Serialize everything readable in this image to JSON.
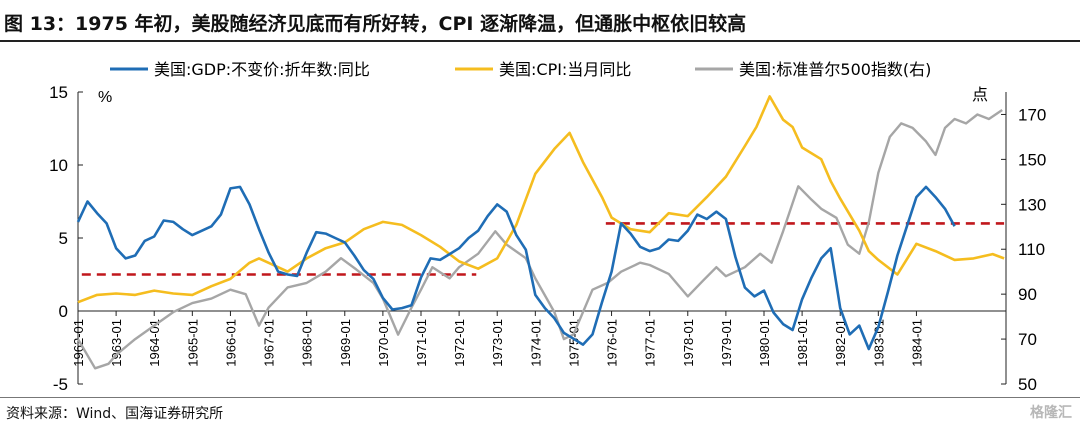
{
  "title": "图 13：1975 年初，美股随经济见底而有所好转，CPI 逐渐降温，但通胀中枢依旧较高",
  "source": "资料来源：Wind、国海证券研究所",
  "watermark": "格隆汇",
  "chart_data": {
    "type": "line",
    "left_unit": "%",
    "right_unit": "点",
    "left_axis": {
      "min": -5,
      "max": 15,
      "ticks": [
        -5,
        0,
        5,
        10,
        15
      ]
    },
    "right_axis": {
      "min": 50,
      "max": 180,
      "ticks": [
        50,
        70,
        90,
        110,
        130,
        150,
        170
      ]
    },
    "x_range": [
      1962.0,
      1986.35
    ],
    "x_ticks": [
      "1962-01",
      "1963-01",
      "1964-01",
      "1965-01",
      "1966-01",
      "1967-01",
      "1968-01",
      "1969-01",
      "1970-01",
      "1971-01",
      "1972-01",
      "1973-01",
      "1974-01",
      "1975-01",
      "1976-01",
      "1977-01",
      "1978-01",
      "1979-01",
      "1980-01",
      "1981-01",
      "1982-01",
      "1983-01",
      "1984-01"
    ],
    "legend_position": "top",
    "series": [
      {
        "name": "美国:GDP:不变价:折年数:同比",
        "axis": "left",
        "color": "#1f6db5",
        "points": [
          [
            1962.0,
            6.1
          ],
          [
            1962.25,
            7.5
          ],
          [
            1962.5,
            6.7
          ],
          [
            1962.75,
            6.0
          ],
          [
            1963.0,
            4.3
          ],
          [
            1963.25,
            3.6
          ],
          [
            1963.5,
            3.8
          ],
          [
            1963.75,
            4.8
          ],
          [
            1964.0,
            5.1
          ],
          [
            1964.25,
            6.2
          ],
          [
            1964.5,
            6.1
          ],
          [
            1964.75,
            5.6
          ],
          [
            1965.0,
            5.2
          ],
          [
            1965.25,
            5.5
          ],
          [
            1965.5,
            5.8
          ],
          [
            1965.75,
            6.6
          ],
          [
            1966.0,
            8.4
          ],
          [
            1966.25,
            8.5
          ],
          [
            1966.5,
            7.3
          ],
          [
            1966.75,
            5.6
          ],
          [
            1967.0,
            4.0
          ],
          [
            1967.25,
            2.7
          ],
          [
            1967.5,
            2.5
          ],
          [
            1967.75,
            2.4
          ],
          [
            1968.0,
            4.0
          ],
          [
            1968.25,
            5.4
          ],
          [
            1968.5,
            5.3
          ],
          [
            1968.75,
            5.0
          ],
          [
            1969.0,
            4.7
          ],
          [
            1969.25,
            3.8
          ],
          [
            1969.5,
            2.8
          ],
          [
            1969.75,
            2.2
          ],
          [
            1970.0,
            0.9
          ],
          [
            1970.25,
            0.1
          ],
          [
            1970.5,
            0.2
          ],
          [
            1970.75,
            0.4
          ],
          [
            1971.0,
            2.3
          ],
          [
            1971.25,
            3.6
          ],
          [
            1971.5,
            3.5
          ],
          [
            1971.75,
            3.9
          ],
          [
            1972.0,
            4.3
          ],
          [
            1972.25,
            5.0
          ],
          [
            1972.5,
            5.5
          ],
          [
            1972.75,
            6.5
          ],
          [
            1973.0,
            7.3
          ],
          [
            1973.25,
            6.8
          ],
          [
            1973.5,
            5.2
          ],
          [
            1973.75,
            4.2
          ],
          [
            1974.0,
            1.1
          ],
          [
            1974.25,
            0.2
          ],
          [
            1974.5,
            -0.5
          ],
          [
            1974.75,
            -1.5
          ],
          [
            1975.0,
            -1.9
          ],
          [
            1975.25,
            -2.3
          ],
          [
            1975.5,
            -1.6
          ],
          [
            1975.75,
            0.6
          ],
          [
            1976.0,
            2.7
          ],
          [
            1976.25,
            6.0
          ],
          [
            1976.5,
            5.3
          ],
          [
            1976.75,
            4.4
          ],
          [
            1977.0,
            4.1
          ],
          [
            1977.25,
            4.3
          ],
          [
            1977.5,
            4.9
          ],
          [
            1977.75,
            4.8
          ],
          [
            1978.0,
            5.5
          ],
          [
            1978.25,
            6.6
          ],
          [
            1978.5,
            6.3
          ],
          [
            1978.75,
            6.8
          ],
          [
            1979.0,
            6.3
          ],
          [
            1979.25,
            3.7
          ],
          [
            1979.5,
            1.6
          ],
          [
            1979.75,
            1.0
          ],
          [
            1980.0,
            1.4
          ],
          [
            1980.25,
            -0.1
          ],
          [
            1980.5,
            -0.9
          ],
          [
            1980.75,
            -1.3
          ],
          [
            1981.0,
            0.8
          ],
          [
            1981.25,
            2.3
          ],
          [
            1981.5,
            3.6
          ],
          [
            1981.75,
            4.3
          ],
          [
            1982.0,
            0.2
          ],
          [
            1982.25,
            -1.6
          ],
          [
            1982.5,
            -1.0
          ],
          [
            1982.75,
            -2.6
          ],
          [
            1983.0,
            -1.1
          ],
          [
            1983.25,
            1.3
          ],
          [
            1983.5,
            3.8
          ],
          [
            1983.75,
            5.8
          ],
          [
            1984.0,
            7.8
          ],
          [
            1984.25,
            8.5
          ],
          [
            1984.5,
            7.8
          ],
          [
            1984.75,
            7.0
          ],
          [
            1985.0,
            5.8
          ]
        ]
      },
      {
        "name": "美国:CPI:当月同比",
        "axis": "left",
        "color": "#f5bd1f",
        "points": [
          [
            1962.0,
            0.6
          ],
          [
            1962.5,
            1.1
          ],
          [
            1963.0,
            1.2
          ],
          [
            1963.5,
            1.1
          ],
          [
            1964.0,
            1.4
          ],
          [
            1964.5,
            1.2
          ],
          [
            1965.0,
            1.1
          ],
          [
            1965.5,
            1.7
          ],
          [
            1966.0,
            2.2
          ],
          [
            1966.5,
            3.3
          ],
          [
            1966.75,
            3.6
          ],
          [
            1967.0,
            3.3
          ],
          [
            1967.5,
            2.7
          ],
          [
            1968.0,
            3.6
          ],
          [
            1968.5,
            4.3
          ],
          [
            1969.0,
            4.7
          ],
          [
            1969.5,
            5.6
          ],
          [
            1970.0,
            6.1
          ],
          [
            1970.5,
            5.9
          ],
          [
            1971.0,
            5.2
          ],
          [
            1971.5,
            4.4
          ],
          [
            1972.0,
            3.4
          ],
          [
            1972.5,
            2.9
          ],
          [
            1973.0,
            3.6
          ],
          [
            1973.5,
            5.9
          ],
          [
            1974.0,
            9.4
          ],
          [
            1974.5,
            11.1
          ],
          [
            1974.9,
            12.2
          ],
          [
            1975.25,
            10.2
          ],
          [
            1975.75,
            7.8
          ],
          [
            1976.0,
            6.4
          ],
          [
            1976.5,
            5.6
          ],
          [
            1977.0,
            5.4
          ],
          [
            1977.5,
            6.7
          ],
          [
            1978.0,
            6.5
          ],
          [
            1978.5,
            7.8
          ],
          [
            1979.0,
            9.2
          ],
          [
            1979.5,
            11.3
          ],
          [
            1979.8,
            12.6
          ],
          [
            1980.15,
            14.7
          ],
          [
            1980.5,
            13.1
          ],
          [
            1980.75,
            12.6
          ],
          [
            1981.0,
            11.2
          ],
          [
            1981.5,
            10.4
          ],
          [
            1981.75,
            8.9
          ],
          [
            1982.0,
            7.7
          ],
          [
            1982.5,
            5.5
          ],
          [
            1982.75,
            4.1
          ],
          [
            1983.0,
            3.5
          ],
          [
            1983.5,
            2.5
          ],
          [
            1984.0,
            4.6
          ],
          [
            1984.5,
            4.1
          ],
          [
            1985.0,
            3.5
          ],
          [
            1985.5,
            3.6
          ],
          [
            1986.0,
            3.9
          ],
          [
            1986.3,
            3.6
          ]
        ]
      },
      {
        "name": "美国:标准普尔500指数(右)",
        "axis": "right",
        "color": "#a6a6a6",
        "points": [
          [
            1962.0,
            70
          ],
          [
            1962.45,
            57
          ],
          [
            1962.8,
            59
          ],
          [
            1963.0,
            63
          ],
          [
            1963.5,
            70
          ],
          [
            1964.0,
            76
          ],
          [
            1964.5,
            82
          ],
          [
            1965.0,
            86
          ],
          [
            1965.5,
            88
          ],
          [
            1966.0,
            92
          ],
          [
            1966.4,
            90
          ],
          [
            1966.75,
            76
          ],
          [
            1967.0,
            84
          ],
          [
            1967.5,
            93
          ],
          [
            1968.0,
            95
          ],
          [
            1968.5,
            100
          ],
          [
            1968.9,
            106
          ],
          [
            1969.3,
            101
          ],
          [
            1969.75,
            95
          ],
          [
            1970.0,
            88
          ],
          [
            1970.4,
            72
          ],
          [
            1970.75,
            84
          ],
          [
            1971.0,
            92
          ],
          [
            1971.3,
            102
          ],
          [
            1971.75,
            97
          ],
          [
            1972.0,
            102
          ],
          [
            1972.5,
            108
          ],
          [
            1972.95,
            118
          ],
          [
            1973.25,
            112
          ],
          [
            1973.75,
            106
          ],
          [
            1974.0,
            97
          ],
          [
            1974.5,
            82
          ],
          [
            1974.75,
            70
          ],
          [
            1975.0,
            72
          ],
          [
            1975.5,
            92
          ],
          [
            1975.9,
            95
          ],
          [
            1976.25,
            100
          ],
          [
            1976.75,
            104
          ],
          [
            1977.0,
            103
          ],
          [
            1977.5,
            99
          ],
          [
            1978.0,
            89
          ],
          [
            1978.4,
            96
          ],
          [
            1978.75,
            102
          ],
          [
            1979.0,
            98
          ],
          [
            1979.5,
            102
          ],
          [
            1979.9,
            108
          ],
          [
            1980.2,
            104
          ],
          [
            1980.5,
            118
          ],
          [
            1980.9,
            138
          ],
          [
            1981.25,
            132
          ],
          [
            1981.5,
            128
          ],
          [
            1981.9,
            124
          ],
          [
            1982.2,
            112
          ],
          [
            1982.5,
            108
          ],
          [
            1982.75,
            122
          ],
          [
            1983.0,
            144
          ],
          [
            1983.3,
            160
          ],
          [
            1983.6,
            166
          ],
          [
            1983.9,
            164
          ],
          [
            1984.25,
            158
          ],
          [
            1984.5,
            152
          ],
          [
            1984.75,
            164
          ],
          [
            1985.0,
            168
          ],
          [
            1985.3,
            166
          ],
          [
            1985.6,
            170
          ],
          [
            1985.9,
            168
          ],
          [
            1986.25,
            172
          ]
        ]
      }
    ],
    "reference_lines": [
      {
        "axis": "left",
        "value": 2.5,
        "x_start": 1962.1,
        "x_end": 1972.45,
        "color": "#c0171c",
        "style": "dashed"
      },
      {
        "axis": "left",
        "value": 6.0,
        "x_start": 1975.85,
        "x_end": 1986.3,
        "color": "#c0171c",
        "style": "dashed"
      }
    ]
  }
}
